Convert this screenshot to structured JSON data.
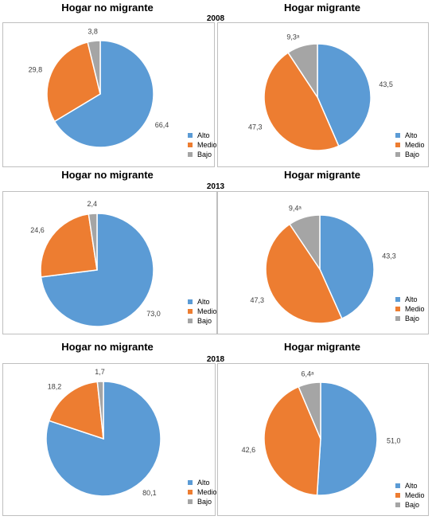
{
  "legend": [
    {
      "label": "Alto",
      "color": "#5b9bd5"
    },
    {
      "label": "Medio",
      "color": "#ed7d31"
    },
    {
      "label": "Bajo",
      "color": "#a5a5a5"
    }
  ],
  "blocks": [
    {
      "year": "2008",
      "left_title": "Hogar no migrante",
      "right_title": "Hogar migrante"
    },
    {
      "year": "2013",
      "left_title": "Hogar no migrante",
      "right_title": "Hogar migrante"
    },
    {
      "year": "2018",
      "left_title": "Hogar no migrante",
      "right_title": "Hogar migrante"
    }
  ],
  "chart_data": [
    {
      "type": "pie",
      "title": "Hogar no migrante",
      "subtitle": "2008",
      "labels": [
        "Alto",
        "Medio",
        "Bajo"
      ],
      "values": [
        66.4,
        29.8,
        3.8
      ],
      "value_labels": [
        "66,4",
        "29,8",
        "3,8"
      ]
    },
    {
      "type": "pie",
      "title": "Hogar migrante",
      "subtitle": "2008",
      "labels": [
        "Alto",
        "Medio",
        "Bajo"
      ],
      "values": [
        43.5,
        47.3,
        9.3
      ],
      "value_labels": [
        "43,5",
        "47,3",
        "9,3ᵃ"
      ]
    },
    {
      "type": "pie",
      "title": "Hogar no migrante",
      "subtitle": "2013",
      "labels": [
        "Alto",
        "Medio",
        "Bajo"
      ],
      "values": [
        73.0,
        24.6,
        2.4
      ],
      "value_labels": [
        "73,0",
        "24,6",
        "2,4"
      ]
    },
    {
      "type": "pie",
      "title": "Hogar migrante",
      "subtitle": "2013",
      "labels": [
        "Alto",
        "Medio",
        "Bajo"
      ],
      "values": [
        43.3,
        47.3,
        9.4
      ],
      "value_labels": [
        "43,3",
        "47,3",
        "9,4ᵃ"
      ]
    },
    {
      "type": "pie",
      "title": "Hogar no migrante",
      "subtitle": "2018",
      "labels": [
        "Alto",
        "Medio",
        "Bajo"
      ],
      "values": [
        80.1,
        18.2,
        1.7
      ],
      "value_labels": [
        "80,1",
        "18,2",
        "1,7"
      ]
    },
    {
      "type": "pie",
      "title": "Hogar migrante",
      "subtitle": "2018",
      "labels": [
        "Alto",
        "Medio",
        "Bajo"
      ],
      "values": [
        51.0,
        42.6,
        6.4
      ],
      "value_labels": [
        "51,0",
        "42,6",
        "6,4ᵃ"
      ]
    }
  ]
}
